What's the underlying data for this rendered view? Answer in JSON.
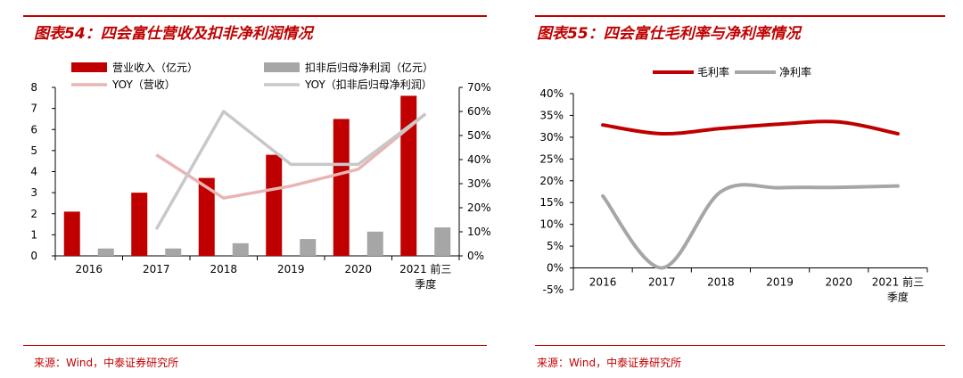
{
  "left": {
    "title": "图表54：四会富仕营收及扣非净利润情况",
    "source": "来源：Wind，中泰证券研究所"
  },
  "right": {
    "title": "图表55：四会富仕毛利率与净利率情况",
    "source": "来源：Wind，中泰证券研究所"
  },
  "colors": {
    "red": "#c00000",
    "gray": "#a6a6a6",
    "pink": "#e8b4b4",
    "lightgray": "#c8c8c8"
  },
  "chart_data": [
    {
      "type": "bar",
      "categories": [
        "2016",
        "2017",
        "2018",
        "2019",
        "2020",
        "2021 前三季度"
      ],
      "category_lines": [
        [
          "2016"
        ],
        [
          "2017"
        ],
        [
          "2018"
        ],
        [
          "2019"
        ],
        [
          "2020"
        ],
        [
          "2021 前三",
          "季度"
        ]
      ],
      "ylim": [
        0,
        8
      ],
      "yticks": [
        "0",
        "1",
        "2",
        "3",
        "4",
        "5",
        "6",
        "7",
        "8"
      ],
      "y2lim": [
        0,
        70
      ],
      "y2ticks": [
        "0%",
        "10%",
        "20%",
        "30%",
        "40%",
        "50%",
        "60%",
        "70%"
      ],
      "series": [
        {
          "name": "营业收入（亿元）",
          "type": "bar",
          "axis": "left",
          "color": "#c00000",
          "values": [
            2.1,
            3.0,
            3.7,
            4.8,
            6.5,
            7.6
          ]
        },
        {
          "name": "扣非后归母净利润（亿元）",
          "type": "bar",
          "axis": "left",
          "color": "#a6a6a6",
          "values": [
            0.35,
            0.35,
            0.6,
            0.8,
            1.15,
            1.35
          ]
        },
        {
          "name": "YOY（营收）",
          "type": "line",
          "axis": "right",
          "color": "#e8b4b4",
          "values": [
            null,
            42,
            24,
            29,
            36,
            59
          ]
        },
        {
          "name": "YOY（扣非后归母净利润）",
          "type": "line",
          "axis": "right",
          "color": "#c8c8c8",
          "values": [
            null,
            11,
            60,
            38,
            38,
            59
          ]
        }
      ]
    },
    {
      "type": "line",
      "categories": [
        "2016",
        "2017",
        "2018",
        "2019",
        "2020",
        "2021 前三季度"
      ],
      "category_lines": [
        [
          "2016"
        ],
        [
          "2017"
        ],
        [
          "2018"
        ],
        [
          "2019"
        ],
        [
          "2020"
        ],
        [
          "2021 前三",
          "季度"
        ]
      ],
      "ylim": [
        -5,
        40
      ],
      "yticks": [
        "-5%",
        "0%",
        "5%",
        "10%",
        "15%",
        "20%",
        "25%",
        "30%",
        "35%",
        "40%"
      ],
      "series": [
        {
          "name": "毛利率",
          "color": "#c00000",
          "values": [
            32.8,
            30.8,
            32.0,
            33.0,
            33.5,
            30.8
          ]
        },
        {
          "name": "净利率",
          "color": "#a6a6a6",
          "values": [
            16.5,
            0.0,
            17.5,
            18.4,
            18.5,
            18.8
          ]
        }
      ]
    }
  ]
}
